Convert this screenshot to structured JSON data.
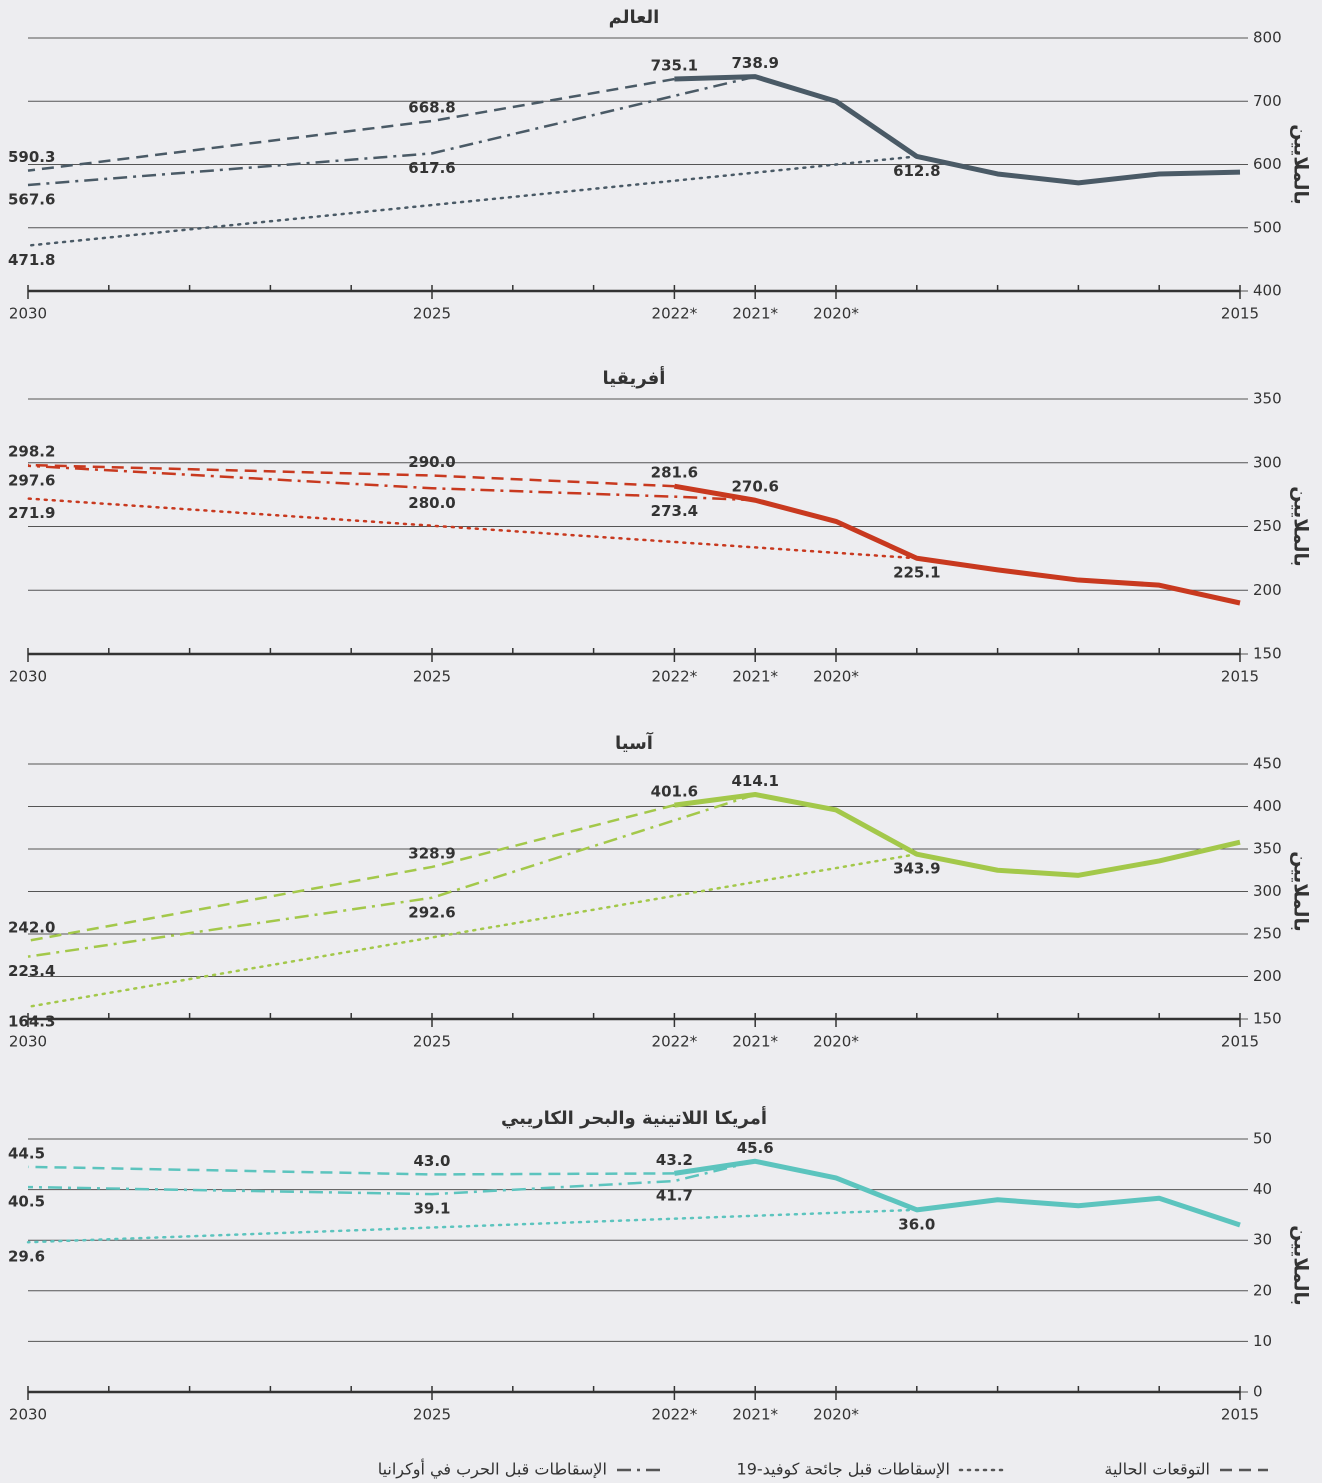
{
  "chart_data": [
    {
      "type": "line",
      "title": "العالم",
      "ylabel": "بالملايين",
      "color": "#4a5a66",
      "xlim": [
        2030,
        2015
      ],
      "xticks": [
        2030,
        2025,
        {
          "value": 2022,
          "label": "2022*"
        },
        {
          "value": 2021,
          "label": "2021*"
        },
        {
          "value": 2020,
          "label": "2020*"
        },
        2015
      ],
      "xminorticks": [
        2016,
        2017,
        2018,
        2019,
        2023,
        2024,
        2026,
        2027,
        2028,
        2029
      ],
      "ylim": [
        400,
        800
      ],
      "yticks": [
        400,
        500,
        600,
        700,
        800
      ],
      "grid": true,
      "series": [
        {
          "style": "solid",
          "x": [
            2015,
            2016,
            2017,
            2018,
            2019,
            2020,
            2021,
            2022
          ],
          "values": [
            588,
            585,
            571,
            585,
            612.8,
            700,
            738.9,
            735.1
          ],
          "value_labels": [
            null,
            null,
            null,
            null,
            null,
            null,
            "738.9",
            "735.1"
          ]
        },
        {
          "style": "dashed",
          "x": [
            2022,
            2025,
            2030
          ],
          "values": [
            735.1,
            668.8,
            590.3
          ],
          "value_labels": [
            null,
            "668.8",
            "590.3"
          ]
        },
        {
          "style": "dashdot",
          "x": [
            2021,
            2025,
            2030
          ],
          "values": [
            738.9,
            617.6,
            567.6
          ],
          "value_labels": [
            null,
            "617.6",
            "567.6"
          ]
        },
        {
          "style": "dotted",
          "x": [
            2019,
            2030
          ],
          "values": [
            612.8,
            471.8
          ],
          "value_labels": [
            "612.8",
            "471.8"
          ]
        }
      ]
    },
    {
      "type": "line",
      "title": "أفريقيا",
      "ylabel": "بالملايين",
      "color": "#c8391f",
      "xlim": [
        2030,
        2015
      ],
      "xticks": [
        2030,
        2025,
        {
          "value": 2022,
          "label": "2022*"
        },
        {
          "value": 2021,
          "label": "2021*"
        },
        {
          "value": 2020,
          "label": "2020*"
        },
        2015
      ],
      "xminorticks": [
        2016,
        2017,
        2018,
        2019,
        2023,
        2024,
        2026,
        2027,
        2028,
        2029
      ],
      "ylim": [
        150,
        350
      ],
      "yticks": [
        150,
        200,
        250,
        300,
        350
      ],
      "grid": true,
      "series": [
        {
          "style": "solid",
          "x": [
            2015,
            2016,
            2017,
            2018,
            2019,
            2020,
            2021,
            2022
          ],
          "values": [
            190,
            204,
            208,
            216,
            225.1,
            254,
            270.6,
            281.6
          ],
          "value_labels": [
            null,
            null,
            null,
            null,
            null,
            null,
            "270.6",
            "281.6"
          ]
        },
        {
          "style": "dashed",
          "x": [
            2022,
            2025,
            2030
          ],
          "values": [
            281.6,
            290.0,
            298.2
          ],
          "value_labels": [
            null,
            "290.0",
            "298.2"
          ]
        },
        {
          "style": "dashdot",
          "x": [
            2021,
            2022,
            2025,
            2030
          ],
          "values": [
            270.6,
            273.4,
            280.0,
            297.6
          ],
          "value_labels": [
            null,
            "273.4",
            "280.0",
            "297.6"
          ]
        },
        {
          "style": "dotted",
          "x": [
            2019,
            2030
          ],
          "values": [
            225.1,
            271.9
          ],
          "value_labels": [
            "225.1",
            "271.9"
          ]
        }
      ]
    },
    {
      "type": "line",
      "title": "آسيا",
      "ylabel": "بالملايين",
      "color": "#a3c84a",
      "xlim": [
        2030,
        2015
      ],
      "xticks": [
        2030,
        2025,
        {
          "value": 2022,
          "label": "2022*"
        },
        {
          "value": 2021,
          "label": "2021*"
        },
        {
          "value": 2020,
          "label": "2020*"
        },
        2015
      ],
      "xminorticks": [
        2016,
        2017,
        2018,
        2019,
        2023,
        2024,
        2026,
        2027,
        2028,
        2029
      ],
      "ylim": [
        150,
        450
      ],
      "yticks": [
        150,
        200,
        250,
        300,
        350,
        400,
        450
      ],
      "grid": true,
      "series": [
        {
          "style": "solid",
          "x": [
            2015,
            2016,
            2017,
            2018,
            2019,
            2020,
            2021,
            2022
          ],
          "values": [
            358,
            336,
            319,
            325,
            343.9,
            396,
            414.1,
            401.6
          ],
          "value_labels": [
            null,
            null,
            null,
            null,
            null,
            null,
            "414.1",
            "401.6"
          ]
        },
        {
          "style": "dashed",
          "x": [
            2022,
            2025,
            2030
          ],
          "values": [
            401.6,
            328.9,
            242.0
          ],
          "value_labels": [
            null,
            "328.9",
            "242.0"
          ]
        },
        {
          "style": "dashdot",
          "x": [
            2021,
            2025,
            2030
          ],
          "values": [
            414.1,
            292.6,
            223.4
          ],
          "value_labels": [
            null,
            "292.6",
            "223.4"
          ]
        },
        {
          "style": "dotted",
          "x": [
            2019,
            2030
          ],
          "values": [
            343.9,
            164.3
          ],
          "value_labels": [
            "343.9",
            "164.3"
          ]
        }
      ]
    },
    {
      "type": "line",
      "title": "أمريكا اللاتينية والبحر الكاريبي",
      "ylabel": "بالملايين",
      "color": "#5cc4be",
      "xlim": [
        2030,
        2015
      ],
      "xticks": [
        2030,
        2025,
        {
          "value": 2022,
          "label": "2022*"
        },
        {
          "value": 2021,
          "label": "2021*"
        },
        {
          "value": 2020,
          "label": "2020*"
        },
        2015
      ],
      "xminorticks": [
        2016,
        2017,
        2018,
        2019,
        2023,
        2024,
        2026,
        2027,
        2028,
        2029
      ],
      "ylim": [
        0,
        50
      ],
      "yticks": [
        0,
        10,
        20,
        30,
        40,
        50
      ],
      "grid": true,
      "series": [
        {
          "style": "solid",
          "x": [
            2015,
            2016,
            2017,
            2018,
            2019,
            2020,
            2021,
            2022
          ],
          "values": [
            33,
            38.3,
            36.8,
            38,
            36.0,
            42.3,
            45.6,
            43.2
          ],
          "value_labels": [
            null,
            null,
            null,
            null,
            null,
            null,
            "45.6",
            "43.2"
          ]
        },
        {
          "style": "dashed",
          "x": [
            2022,
            2025,
            2030
          ],
          "values": [
            43.2,
            43.0,
            44.5
          ],
          "value_labels": [
            null,
            "43.0",
            "44.5"
          ]
        },
        {
          "style": "dashdot",
          "x": [
            2021,
            2022,
            2025,
            2030
          ],
          "values": [
            45.6,
            41.7,
            39.1,
            40.5
          ],
          "value_labels": [
            null,
            "41.7",
            "39.1",
            "40.5"
          ]
        },
        {
          "style": "dotted",
          "x": [
            2019,
            2030
          ],
          "values": [
            36.0,
            29.6
          ],
          "value_labels": [
            "36.0",
            "29.6"
          ]
        }
      ]
    }
  ],
  "legend": [
    {
      "name": "التوقعات الحالية",
      "style": "dashed"
    },
    {
      "name": "الإسقاطات قبل جائحة كوفيد-19",
      "style": "dotted"
    },
    {
      "name": "الإسقاطات قبل الحرب في أوكرانيا",
      "style": "dashdot"
    }
  ]
}
